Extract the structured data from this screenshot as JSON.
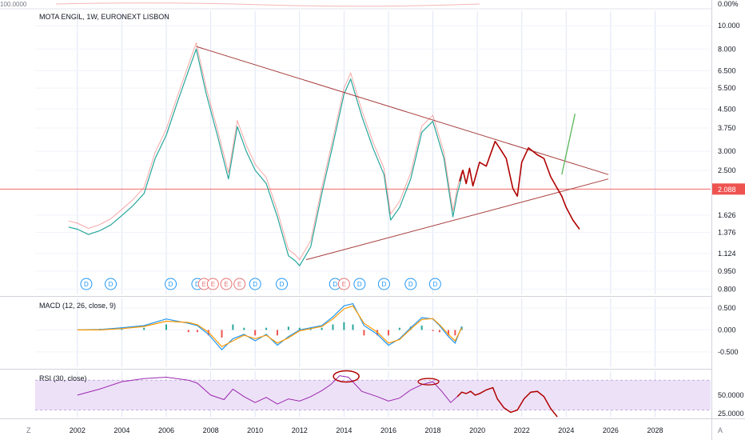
{
  "top_strip": {
    "right_label": "0.00%",
    "left_label": "100.0000"
  },
  "chart_data": [
    {
      "type": "line",
      "title": "MOTA ENGIL, 1W, EURONEXT LISBON",
      "subtitle": "",
      "xlabel": "",
      "ylabel": "",
      "y_scale": "log",
      "ylim": [
        0.76,
        11.5
      ],
      "x_range": [
        2000.1,
        2030.5
      ],
      "x_ticks": [
        "2002",
        "2004",
        "2006",
        "2008",
        "2010",
        "2012",
        "2014",
        "2016",
        "2018",
        "2020",
        "2022",
        "2024",
        "2026",
        "2028"
      ],
      "y_ticks": [
        "10.000",
        "8.000",
        "6.500",
        "5.500",
        "4.500",
        "3.750",
        "3.000",
        "2.500",
        "2.088",
        "1.626",
        "1.376",
        "1.124",
        "0.950",
        "0.800"
      ],
      "last_price": {
        "value": 2.088,
        "label": "2.088",
        "color": "#ef5350"
      },
      "price_series": {
        "name": "",
        "x": [
          2001.6,
          2002.0,
          2002.5,
          2003.0,
          2003.5,
          2004.0,
          2004.5,
          2005.0,
          2005.5,
          2006.0,
          2006.5,
          2007.0,
          2007.35,
          2007.8,
          2008.3,
          2008.8,
          2009.2,
          2009.6,
          2010.0,
          2010.5,
          2011.0,
          2011.5,
          2011.8,
          2012.0,
          2012.5,
          2013.0,
          2013.5,
          2014.0,
          2014.3,
          2014.8,
          2015.3,
          2015.8,
          2016.1,
          2016.5,
          2017.0,
          2017.5,
          2018.0,
          2018.5,
          2018.9,
          2019.1,
          2019.3
        ],
        "values": [
          1.45,
          1.42,
          1.35,
          1.4,
          1.48,
          1.62,
          1.78,
          2.0,
          2.8,
          3.5,
          4.8,
          6.5,
          8.0,
          5.2,
          3.5,
          2.3,
          3.8,
          3.0,
          2.5,
          2.2,
          1.6,
          1.1,
          1.05,
          1.0,
          1.2,
          2.0,
          3.2,
          5.2,
          6.0,
          4.2,
          3.1,
          2.4,
          1.55,
          1.75,
          2.3,
          3.6,
          4.0,
          2.8,
          1.6,
          2.0,
          2.35
        ],
        "color": "#26a69a"
      },
      "trendlines": [
        {
          "name": "",
          "x": [
            2007.35,
            2025.9
          ],
          "values": [
            8.2,
            2.4
          ],
          "color": "#a83c3c"
        },
        {
          "name": "",
          "x": [
            2012.3,
            2025.9
          ],
          "values": [
            1.06,
            2.3
          ],
          "color": "#a83c3c"
        }
      ],
      "projection": {
        "x": [
          2019.2,
          2019.35,
          2019.5,
          2019.65,
          2019.8,
          2020.1,
          2020.4,
          2020.8,
          2021.0,
          2021.3,
          2021.6,
          2021.8,
          2022.0,
          2022.3,
          2022.7,
          2023.0,
          2023.3,
          2023.6,
          2023.8,
          2024.0,
          2024.3,
          2024.6
        ],
        "values": [
          2.25,
          2.5,
          2.2,
          2.55,
          2.15,
          2.7,
          2.6,
          3.3,
          3.1,
          2.8,
          2.1,
          1.95,
          2.7,
          3.1,
          2.9,
          2.8,
          2.35,
          2.1,
          1.95,
          1.75,
          1.55,
          1.42
        ],
        "color": "#b00000"
      },
      "green_projection": {
        "x": [
          2023.8,
          2024.4
        ],
        "values": [
          2.4,
          4.3
        ],
        "color": "#5cb85c"
      },
      "events": [
        {
          "x": 2002.4,
          "label": "D",
          "kind": "dividend"
        },
        {
          "x": 2003.5,
          "label": "D",
          "kind": "dividend"
        },
        {
          "x": 2006.2,
          "label": "D",
          "kind": "dividend"
        },
        {
          "x": 2007.4,
          "label": "D",
          "kind": "dividend"
        },
        {
          "x": 2007.7,
          "label": "E",
          "kind": "earnings"
        },
        {
          "x": 2008.1,
          "label": "E",
          "kind": "earnings"
        },
        {
          "x": 2008.7,
          "label": "E",
          "kind": "earnings"
        },
        {
          "x": 2009.3,
          "label": "E",
          "kind": "earnings"
        },
        {
          "x": 2010.0,
          "label": "D",
          "kind": "dividend"
        },
        {
          "x": 2011.2,
          "label": "D",
          "kind": "dividend"
        },
        {
          "x": 2013.6,
          "label": "D",
          "kind": "dividend"
        },
        {
          "x": 2014.0,
          "label": "E",
          "kind": "earnings"
        },
        {
          "x": 2014.7,
          "label": "D",
          "kind": "dividend"
        },
        {
          "x": 2015.8,
          "label": "D",
          "kind": "dividend"
        },
        {
          "x": 2017.0,
          "label": "D",
          "kind": "dividend"
        },
        {
          "x": 2018.1,
          "label": "D",
          "kind": "dividend"
        }
      ]
    },
    {
      "type": "line",
      "title": "MACD (12, 26, close, 9)",
      "ylim": [
        -0.85,
        0.72
      ],
      "y_ticks": [
        "0.500",
        "0.000",
        "-0.500"
      ],
      "x": [
        2002.0,
        2003.0,
        2004.0,
        2005.0,
        2006.0,
        2007.0,
        2007.4,
        2007.9,
        2008.5,
        2009.0,
        2009.5,
        2010.0,
        2010.5,
        2011.0,
        2011.5,
        2012.0,
        2012.5,
        2013.0,
        2013.5,
        2014.0,
        2014.4,
        2014.9,
        2015.5,
        2016.0,
        2016.5,
        2017.0,
        2017.5,
        2018.0,
        2018.3,
        2018.7,
        2019.0,
        2019.3
      ],
      "series": [
        {
          "name": "",
          "values": [
            0.0,
            0.01,
            0.05,
            0.1,
            0.25,
            0.15,
            0.1,
            -0.1,
            -0.45,
            -0.2,
            -0.1,
            -0.25,
            -0.1,
            -0.35,
            -0.15,
            0.0,
            0.05,
            0.1,
            0.3,
            0.55,
            0.6,
            0.1,
            -0.1,
            -0.35,
            -0.2,
            0.05,
            0.28,
            0.25,
            0.1,
            -0.15,
            -0.3,
            0.08
          ],
          "color": "#2196f3"
        },
        {
          "name": "",
          "values": [
            0.0,
            0.0,
            0.03,
            0.08,
            0.2,
            0.17,
            0.12,
            -0.05,
            -0.38,
            -0.25,
            -0.12,
            -0.2,
            -0.12,
            -0.3,
            -0.18,
            -0.02,
            0.03,
            0.08,
            0.25,
            0.48,
            0.55,
            0.15,
            -0.05,
            -0.3,
            -0.22,
            0.02,
            0.24,
            0.26,
            0.12,
            -0.1,
            -0.25,
            0.05
          ],
          "color": "#ff9800"
        }
      ]
    },
    {
      "type": "line",
      "title": "RSI (30, close)",
      "ylim": [
        21,
        82
      ],
      "y_ticks": [
        "50.0000",
        "25.0000"
      ],
      "band": [
        30,
        70
      ],
      "x": [
        2002.0,
        2003.0,
        2004.0,
        2005.0,
        2006.0,
        2007.0,
        2007.4,
        2008.0,
        2008.6,
        2009.0,
        2009.5,
        2010.0,
        2010.5,
        2011.0,
        2011.5,
        2012.0,
        2012.5,
        2013.0,
        2013.4,
        2013.8,
        2014.2,
        2014.8,
        2015.5,
        2016.0,
        2016.5,
        2017.0,
        2017.5,
        2018.0,
        2018.4,
        2018.8,
        2019.1
      ],
      "series": [
        {
          "name": "",
          "values": [
            50,
            58,
            68,
            72,
            74,
            70,
            66,
            50,
            44,
            58,
            48,
            40,
            47,
            38,
            45,
            42,
            48,
            56,
            64,
            76,
            74,
            55,
            48,
            42,
            46,
            57,
            64,
            68,
            55,
            40,
            48
          ],
          "color": "#9c27b0"
        }
      ],
      "projection": {
        "x": [
          2019.1,
          2019.3,
          2019.5,
          2019.7,
          2019.9,
          2020.1,
          2020.4,
          2020.7,
          2020.9,
          2021.2,
          2021.5,
          2021.8,
          2022.1,
          2022.4,
          2022.7,
          2023.0,
          2023.3,
          2023.6
        ],
        "values": [
          48,
          54,
          52,
          55,
          50,
          52,
          57,
          60,
          45,
          33,
          27,
          30,
          45,
          54,
          55,
          48,
          32,
          20
        ],
        "color": "#b00000"
      }
    }
  ],
  "axis_mode_labels": {
    "log_toggle": "Z",
    "auto_toggle": "A"
  }
}
